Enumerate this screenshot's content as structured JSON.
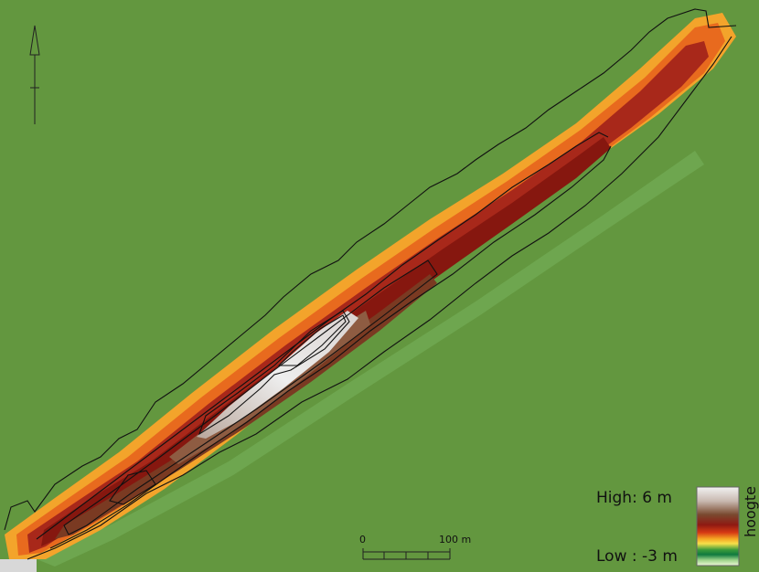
{
  "map": {
    "legend": {
      "title": "hoogte",
      "high_label": "High: 6 m",
      "low_label": "Low : -3 m",
      "high_value_m": 6,
      "low_value_m": -3,
      "ramp_colors": [
        "#f2f2f2",
        "#c8b8b0",
        "#7a4a30",
        "#8e1a12",
        "#d63a14",
        "#f5a623",
        "#f7e04a",
        "#3a9a3a",
        "#0f7a3e",
        "#9ed48a",
        "#eef8d8"
      ]
    },
    "scale_bar": {
      "start_label": "0",
      "end_label": "100 m"
    },
    "north_arrow": {
      "icon": "north-arrow-icon"
    },
    "colors": {
      "background": "#63973f",
      "contour": "#111111"
    }
  }
}
